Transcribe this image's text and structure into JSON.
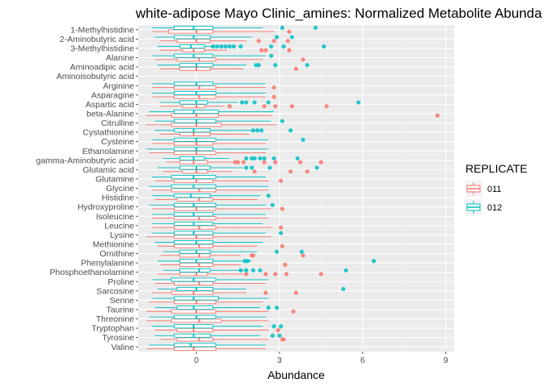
{
  "chart_data": {
    "type": "boxplot",
    "title": "white-adipose Mayo Clinic_amines: Normalized Metabolite Abundance",
    "xlabel": "Abundance",
    "ylabel": "",
    "xlim": [
      -2.1,
      9.3
    ],
    "xticks": [
      0,
      3,
      6,
      9
    ],
    "grid": true,
    "legend": {
      "title": "REPLICATE",
      "position": "right"
    },
    "series": [
      {
        "name": "011",
        "color": "#F8766D"
      },
      {
        "name": "012",
        "color": "#00BFC4"
      }
    ],
    "categories": [
      "Valine",
      "Tyrosine",
      "Tryptophan",
      "Threonine",
      "Taurine",
      "Serine",
      "Sarcosine",
      "Proline",
      "Phosphoethanolamine",
      "Phenylalanine",
      "Ornithine",
      "Methionine",
      "Lysine",
      "Leucine",
      "Isoleucine",
      "Hydroxyproline",
      "Histidine",
      "Glycine",
      "Glutamine",
      "Glutamic acid",
      "gamma-Aminobutyric acid",
      "Ethanolamine",
      "Cysteine",
      "Cystathionine",
      "Citrulline",
      "beta-Alanine",
      "Aspartic acid",
      "Asparagine",
      "Arginine",
      "Aminoisobutyric acid",
      "Aminoadipic acid",
      "Alanine",
      "3-Methylhistidine",
      "2-Aminobutyric acid",
      "1-Methylhistidine"
    ],
    "boxes": {
      "011": [
        [
          -1.8,
          -0.8,
          -0.1,
          0.7,
          2.5
        ],
        [
          -1.3,
          -0.7,
          0.1,
          0.6,
          2.6
        ],
        [
          -1.5,
          -0.7,
          -0.1,
          0.6,
          2.6
        ],
        [
          -1.8,
          -0.9,
          0.1,
          0.9,
          2.6
        ],
        [
          -1.8,
          -0.9,
          0.0,
          0.7,
          2.6
        ],
        [
          -1.7,
          -0.8,
          0.0,
          0.7,
          2.4
        ],
        [
          -1.6,
          -0.9,
          -0.1,
          0.6,
          1.8
        ],
        [
          -1.5,
          -0.8,
          0.1,
          0.6,
          2.5
        ],
        [
          -1.4,
          -0.6,
          0.0,
          0.4,
          1.7
        ],
        [
          -1.3,
          -0.6,
          0.1,
          0.6,
          1.6
        ],
        [
          -1.3,
          -0.6,
          0.1,
          0.5,
          1.6
        ],
        [
          -1.4,
          -0.8,
          0.1,
          0.6,
          2.2
        ],
        [
          -1.8,
          -0.8,
          0.0,
          0.6,
          2.7
        ],
        [
          -1.6,
          -0.8,
          0.1,
          0.7,
          2.7
        ],
        [
          -1.6,
          -0.8,
          0.1,
          0.7,
          2.6
        ],
        [
          -1.6,
          -0.8,
          0.0,
          0.7,
          2.7
        ],
        [
          -1.5,
          -0.7,
          0.1,
          0.6,
          2.2
        ],
        [
          -1.6,
          -0.9,
          0.1,
          0.7,
          2.6
        ],
        [
          -1.5,
          -0.8,
          0.0,
          0.6,
          2.6
        ],
        [
          -1.2,
          -0.5,
          0.0,
          0.4,
          1.3
        ],
        [
          -1.1,
          -0.6,
          -0.1,
          0.4,
          1.3
        ],
        [
          -1.7,
          -0.8,
          0.0,
          0.7,
          2.5
        ],
        [
          -1.6,
          -0.8,
          0.0,
          0.6,
          2.5
        ],
        [
          -1.3,
          -0.6,
          -0.1,
          0.5,
          1.9
        ],
        [
          -1.8,
          -0.9,
          0.0,
          0.9,
          2.9
        ],
        [
          -1.8,
          -0.9,
          0.0,
          0.8,
          2.7
        ],
        [
          -1.3,
          -0.5,
          0.0,
          0.3,
          1.0
        ],
        [
          -1.6,
          -0.8,
          0.1,
          0.7,
          2.5
        ],
        [
          -1.6,
          -0.8,
          0.1,
          0.7,
          2.5
        ],
        [
          0,
          0,
          0,
          0,
          0
        ],
        [
          -1.3,
          -0.6,
          0.0,
          0.5,
          1.7
        ],
        [
          -1.5,
          -0.7,
          0.1,
          0.7,
          2.4
        ],
        [
          -1.3,
          -0.5,
          -0.1,
          0.3,
          1.1
        ],
        [
          -1.3,
          -0.7,
          0.0,
          0.5,
          1.8
        ],
        [
          -1.6,
          -1.0,
          0.0,
          0.6,
          2.8
        ]
      ],
      "012": [
        [
          -1.7,
          -0.8,
          -0.2,
          0.7,
          2.5
        ],
        [
          -1.5,
          -0.8,
          -0.1,
          0.5,
          2.3
        ],
        [
          -1.6,
          -0.8,
          -0.1,
          0.6,
          2.4
        ],
        [
          -1.7,
          -0.8,
          0.0,
          0.7,
          2.5
        ],
        [
          -1.5,
          -0.7,
          -0.1,
          0.6,
          2.3
        ],
        [
          -1.6,
          -0.8,
          -0.1,
          0.8,
          2.6
        ],
        [
          -1.4,
          -0.7,
          0.0,
          0.6,
          1.8
        ],
        [
          -1.6,
          -0.9,
          -0.1,
          0.7,
          2.6
        ],
        [
          -1.2,
          -0.6,
          0.1,
          0.5,
          1.8
        ],
        [
          -1.4,
          -0.6,
          0.0,
          0.6,
          2.0
        ],
        [
          -1.2,
          -0.6,
          0.0,
          0.5,
          2.2
        ],
        [
          -1.5,
          -0.8,
          0.0,
          0.6,
          2.4
        ],
        [
          -1.6,
          -0.8,
          -0.1,
          0.6,
          2.5
        ],
        [
          -1.6,
          -0.8,
          -0.1,
          0.6,
          2.4
        ],
        [
          -1.6,
          -0.8,
          -0.1,
          0.6,
          2.5
        ],
        [
          -1.7,
          -0.8,
          -0.1,
          0.7,
          2.5
        ],
        [
          -1.6,
          -0.8,
          -0.2,
          0.5,
          2.3
        ],
        [
          -1.7,
          -0.9,
          -0.1,
          0.7,
          2.6
        ],
        [
          -1.6,
          -0.9,
          -0.1,
          0.7,
          2.5
        ],
        [
          -1.4,
          -0.6,
          0.0,
          0.5,
          1.7
        ],
        [
          -1.2,
          -0.6,
          -0.1,
          0.3,
          1.2
        ],
        [
          -1.8,
          -0.8,
          0.0,
          0.6,
          2.6
        ],
        [
          -1.6,
          -0.8,
          0.0,
          0.7,
          2.6
        ],
        [
          -1.5,
          -0.8,
          -0.1,
          0.5,
          2.0
        ],
        [
          -1.5,
          -0.8,
          0.0,
          0.7,
          2.7
        ],
        [
          -1.7,
          -0.8,
          -0.1,
          0.8,
          2.8
        ],
        [
          -1.3,
          -0.6,
          0.0,
          0.4,
          1.5
        ],
        [
          -1.6,
          -0.8,
          0.0,
          0.7,
          2.5
        ],
        [
          -1.6,
          -0.8,
          0.0,
          0.6,
          2.5
        ],
        [
          0,
          0,
          0,
          0,
          0
        ],
        [
          -1.4,
          -0.6,
          0.0,
          0.6,
          1.8
        ],
        [
          -1.6,
          -0.8,
          -0.1,
          0.6,
          2.5
        ],
        [
          -1.4,
          -0.6,
          -0.2,
          0.3,
          0.7
        ],
        [
          -1.5,
          -0.8,
          -0.1,
          0.5,
          2.0
        ],
        [
          -1.6,
          -0.8,
          -0.1,
          0.6,
          2.4
        ]
      ]
    },
    "outliers": {
      "011": [
        [],
        [
          3.1,
          3.15
        ],
        [
          2.95
        ],
        [],
        [
          3.5
        ],
        [],
        [
          2.5,
          3.6
        ],
        [],
        [
          1.8,
          2.5,
          2.85,
          3.25,
          4.5
        ],
        [
          3.2
        ],
        [
          2.0,
          2.05,
          3.85
        ],
        [
          3.1
        ],
        [],
        [
          3.05
        ],
        [],
        [
          3.1
        ],
        [],
        [],
        [
          3.05
        ],
        [
          2.1,
          3.4,
          4.0
        ],
        [
          1.4,
          1.5,
          1.7,
          2.45,
          2.85,
          3.75,
          4.5
        ],
        [],
        [],
        [],
        [],
        [
          8.7
        ],
        [
          1.2,
          2.45,
          2.85,
          3.45,
          4.7
        ],
        [
          2.8
        ],
        [
          2.8
        ],
        [],
        [
          3.6
        ],
        [
          3.85
        ],
        [
          2.35,
          2.5,
          3.35
        ],
        [
          2.25,
          2.8,
          3.3
        ],
        [
          3.35
        ]
      ],
      "012": [
        [],
        [
          2.75,
          3.0
        ],
        [
          2.8,
          3.05
        ],
        [],
        [
          2.6,
          2.9
        ],
        [],
        [
          5.3
        ],
        [],
        [
          1.6,
          1.8,
          2.05,
          2.3,
          5.4
        ],
        [
          1.75,
          1.85,
          6.4
        ],
        [
          2.9,
          3.8
        ],
        [],
        [
          3.05
        ],
        [],
        [],
        [
          2.75
        ],
        [
          2.6
        ],
        [],
        [],
        [
          1.8,
          2.0,
          2.65,
          4.35
        ],
        [
          1.8,
          2.0,
          2.1,
          2.3,
          2.45,
          2.8,
          3.65
        ],
        [],
        [
          3.85
        ],
        [
          2.05,
          2.2,
          2.35,
          3.4
        ],
        [
          3.1
        ],
        [],
        [
          1.65,
          1.8,
          2.1,
          2.6,
          5.85
        ],
        [],
        [],
        [],
        [
          2.15,
          2.25,
          2.85,
          4.0
        ],
        [
          2.7
        ],
        [
          0.6,
          0.75,
          0.9,
          1.05,
          1.2,
          1.35,
          1.6,
          2.7,
          3.15,
          4.6
        ],
        [
          2.9,
          3.45
        ],
        [
          3.1,
          4.3
        ]
      ]
    }
  }
}
